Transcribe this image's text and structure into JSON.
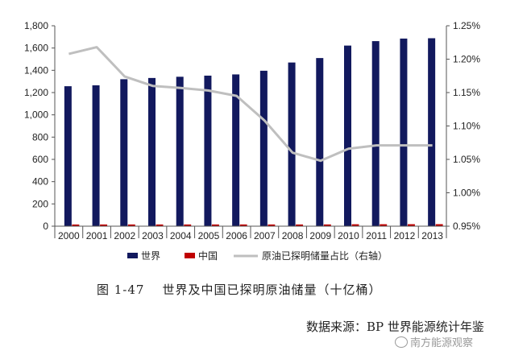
{
  "chart_data": {
    "type": "bar+line",
    "categories": [
      "2000",
      "2001",
      "2002",
      "2003",
      "2004",
      "2005",
      "2006",
      "2007",
      "2008",
      "2009",
      "2010",
      "2011",
      "2012",
      "2013"
    ],
    "series": [
      {
        "name": "世界",
        "type": "bar",
        "axis": "left",
        "color": "#12195e",
        "values": [
          1257,
          1265,
          1320,
          1331,
          1342,
          1352,
          1363,
          1396,
          1470,
          1510,
          1622,
          1662,
          1685,
          1688
        ]
      },
      {
        "name": "中国",
        "type": "bar",
        "axis": "left",
        "color": "#c00000",
        "values": [
          15.2,
          15.4,
          15.5,
          15.5,
          15.5,
          15.5,
          15.6,
          15.5,
          15.5,
          15.8,
          17.3,
          17.6,
          17.9,
          18.1
        ]
      },
      {
        "name": "原油已探明储量占比（右轴）",
        "type": "line",
        "axis": "right",
        "color": "#bfbfbf",
        "values": [
          1.208,
          1.218,
          1.174,
          1.16,
          1.157,
          1.153,
          1.145,
          1.108,
          1.06,
          1.048,
          1.066,
          1.071,
          1.071,
          1.071
        ]
      }
    ],
    "y_left": {
      "min": 0,
      "max": 1800,
      "step": 200,
      "tick_labels": [
        "0",
        "200",
        "400",
        "600",
        "800",
        "1,000",
        "1,200",
        "1,400",
        "1,600",
        "1,800"
      ]
    },
    "y_right": {
      "min": 0.95,
      "max": 1.25,
      "step": 0.05,
      "tick_labels": [
        "0.95%",
        "1.00%",
        "1.05%",
        "1.10%",
        "1.15%",
        "1.20%",
        "1.25%"
      ]
    },
    "legend_placement": "bottom",
    "grid": false
  },
  "caption": {
    "number": "图 1-47",
    "title": "世界及中国已探明原油储量（十亿桶）"
  },
  "source": "数据来源：BP 世界能源统计年鉴",
  "watermark": "南方能源观察"
}
